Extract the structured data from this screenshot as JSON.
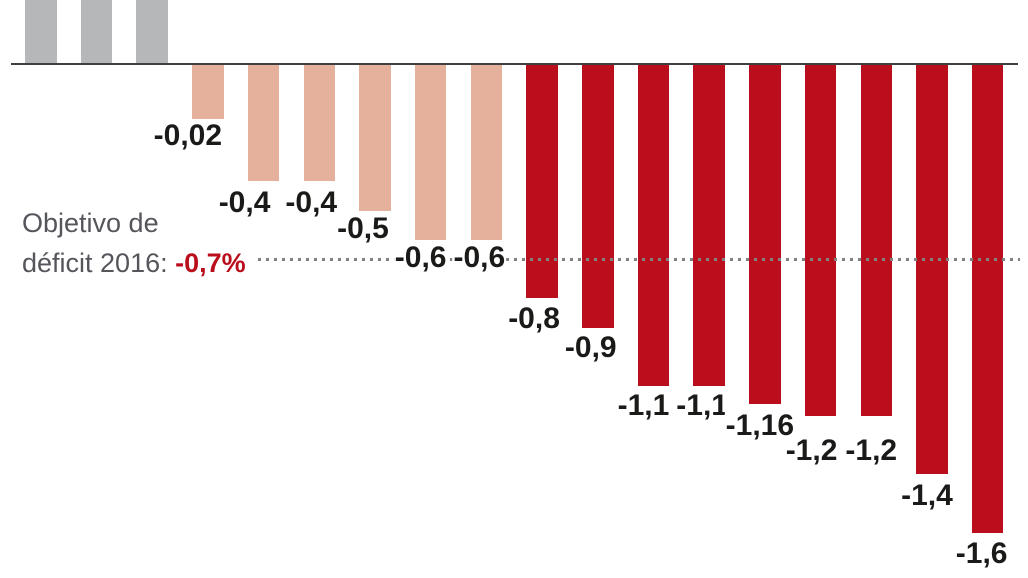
{
  "chart_data": {
    "type": "bar",
    "orientation": "vertical",
    "unit": "%",
    "title": "",
    "xlabel": "",
    "ylabel": "",
    "ylim": [
      -1.7,
      0.3
    ],
    "grid": false,
    "legend": false,
    "note": "Bar tops for the positive gray bars are cropped outside the visible image; their values are not shown.",
    "bars": [
      {
        "group": "positive-cropped",
        "value": null,
        "value_label": ""
      },
      {
        "group": "positive-cropped",
        "value": null,
        "value_label": ""
      },
      {
        "group": "positive-cropped",
        "value": null,
        "value_label": ""
      },
      {
        "group": "light-negative",
        "value": -0.02,
        "value_label": "-0,02"
      },
      {
        "group": "light-negative",
        "value": -0.4,
        "value_label": "-0,4"
      },
      {
        "group": "light-negative",
        "value": -0.4,
        "value_label": "-0,4"
      },
      {
        "group": "light-negative",
        "value": -0.5,
        "value_label": "-0,5"
      },
      {
        "group": "light-negative",
        "value": -0.6,
        "value_label": "-0,6"
      },
      {
        "group": "light-negative",
        "value": -0.6,
        "value_label": "-0,6"
      },
      {
        "group": "dark-negative",
        "value": -0.8,
        "value_label": "-0,8"
      },
      {
        "group": "dark-negative",
        "value": -0.9,
        "value_label": "-0,9"
      },
      {
        "group": "dark-negative",
        "value": -1.1,
        "value_label": "-1,1"
      },
      {
        "group": "dark-negative",
        "value": -1.1,
        "value_label": "-1,1"
      },
      {
        "group": "dark-negative",
        "value": -1.16,
        "value_label": "-1,16"
      },
      {
        "group": "dark-negative",
        "value": -1.2,
        "value_label": "-1,2"
      },
      {
        "group": "dark-negative",
        "value": -1.2,
        "value_label": "-1,2"
      },
      {
        "group": "dark-negative",
        "value": -1.4,
        "value_label": "-1,4"
      },
      {
        "group": "dark-negative",
        "value": -1.6,
        "value_label": "-1,6"
      }
    ],
    "reference_line": {
      "style": "dotted",
      "value": -0.7,
      "text_line1": "Objetivo de",
      "text_line2": "déficit 2016:",
      "value_label": "-0,7%"
    },
    "colors": {
      "positive_cropped_bar": "#b5b7b9",
      "light_negative_bar": "#e5b19c",
      "dark_negative_bar": "#bb0e1d",
      "axis_line": "#3f3f3f",
      "dotted_line": "#818181",
      "bar_label_text": "#1a1a18",
      "annotation_text": "#54565b",
      "target_value_text": "#bb0e1d",
      "background": "#ffffff"
    }
  }
}
